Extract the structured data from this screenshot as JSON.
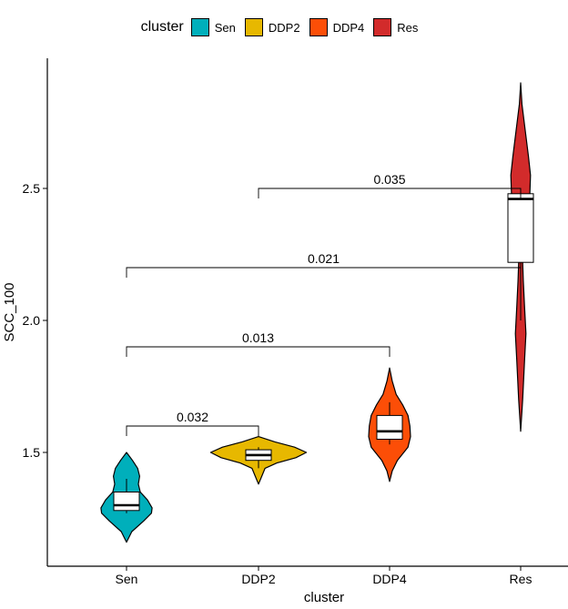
{
  "chart_data": {
    "type": "violin",
    "xlabel": "cluster",
    "ylabel": "SCC_100",
    "ylim": [
      1.12,
      2.95
    ],
    "yticks": [
      "1.5",
      "2.0",
      "2.5"
    ],
    "legend": {
      "title": "cluster",
      "position": "top"
    },
    "categories": [
      "Sen",
      "DDP2",
      "DDP4",
      "Res"
    ],
    "colors": {
      "Sen": "#00AFBB",
      "DDP2": "#E7B800",
      "DDP4": "#FC4E07",
      "Res": "#D22B2B"
    },
    "boxplots": [
      {
        "group": "Sen",
        "min": 1.27,
        "q1": 1.28,
        "median": 1.3,
        "q3": 1.35,
        "max": 1.4
      },
      {
        "group": "DDP2",
        "min": 1.44,
        "q1": 1.47,
        "median": 1.49,
        "q3": 1.51,
        "max": 1.52
      },
      {
        "group": "DDP4",
        "min": 1.53,
        "q1": 1.55,
        "median": 1.58,
        "q3": 1.64,
        "max": 1.69
      },
      {
        "group": "Res",
        "min": 2.0,
        "q1": 2.22,
        "median": 2.46,
        "q3": 2.48,
        "max": 2.5
      }
    ],
    "violins": [
      {
        "group": "Sen",
        "min": 1.16,
        "max": 1.5,
        "density": [
          [
            1.16,
            0.0
          ],
          [
            1.2,
            0.08
          ],
          [
            1.24,
            0.26
          ],
          [
            1.27,
            0.38
          ],
          [
            1.29,
            0.39
          ],
          [
            1.32,
            0.32
          ],
          [
            1.35,
            0.21
          ],
          [
            1.38,
            0.18
          ],
          [
            1.41,
            0.2
          ],
          [
            1.44,
            0.17
          ],
          [
            1.47,
            0.09
          ],
          [
            1.5,
            0.0
          ]
        ]
      },
      {
        "group": "DDP2",
        "min": 1.38,
        "max": 1.56,
        "density": [
          [
            1.38,
            0.0
          ],
          [
            1.41,
            0.05
          ],
          [
            1.44,
            0.1
          ],
          [
            1.46,
            0.28
          ],
          [
            1.48,
            0.57
          ],
          [
            1.5,
            0.73
          ],
          [
            1.52,
            0.55
          ],
          [
            1.54,
            0.25
          ],
          [
            1.56,
            0.0
          ]
        ]
      },
      {
        "group": "DDP4",
        "min": 1.39,
        "max": 1.82,
        "density": [
          [
            1.39,
            0.0
          ],
          [
            1.43,
            0.04
          ],
          [
            1.47,
            0.12
          ],
          [
            1.52,
            0.28
          ],
          [
            1.56,
            0.32
          ],
          [
            1.6,
            0.31
          ],
          [
            1.64,
            0.28
          ],
          [
            1.68,
            0.2
          ],
          [
            1.72,
            0.1
          ],
          [
            1.77,
            0.04
          ],
          [
            1.82,
            0.0
          ]
        ]
      },
      {
        "group": "Res",
        "min": 1.58,
        "max": 2.9,
        "density": [
          [
            1.58,
            0.0
          ],
          [
            1.7,
            0.03
          ],
          [
            1.85,
            0.06
          ],
          [
            1.95,
            0.08
          ],
          [
            2.05,
            0.06
          ],
          [
            2.15,
            0.04
          ],
          [
            2.22,
            0.03
          ],
          [
            2.3,
            0.02
          ],
          [
            2.4,
            0.04
          ],
          [
            2.48,
            0.14
          ],
          [
            2.55,
            0.15
          ],
          [
            2.62,
            0.12
          ],
          [
            2.72,
            0.07
          ],
          [
            2.82,
            0.02
          ],
          [
            2.9,
            0.0
          ]
        ]
      }
    ],
    "comparisons": [
      {
        "from": "Sen",
        "to": "DDP2",
        "y": 1.6,
        "label": "0.032"
      },
      {
        "from": "Sen",
        "to": "DDP4",
        "y": 1.9,
        "label": "0.013"
      },
      {
        "from": "Sen",
        "to": "Res",
        "y": 2.2,
        "label": "0.021"
      },
      {
        "from": "DDP2",
        "to": "Res",
        "y": 2.5,
        "label": "0.035"
      }
    ]
  }
}
